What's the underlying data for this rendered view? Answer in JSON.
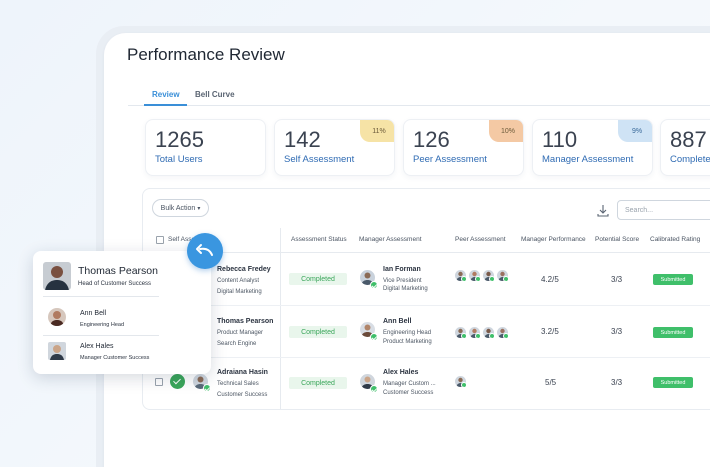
{
  "page": {
    "title": "Performance Review"
  },
  "tabs": [
    {
      "label": "Review",
      "active": true
    },
    {
      "label": "Bell Curve",
      "active": false
    }
  ],
  "stats": [
    {
      "value": "1265",
      "label": "Total Users",
      "percent": ""
    },
    {
      "value": "142",
      "label": "Self Assessment",
      "percent": "11%",
      "color": "#f6e3a6"
    },
    {
      "value": "126",
      "label": "Peer Assessment",
      "percent": "10%",
      "color": "#f4c9a4"
    },
    {
      "value": "110",
      "label": "Manager Assessment",
      "percent": "9%",
      "color": "#cfe3f5"
    },
    {
      "value": "887",
      "label": "Completed",
      "percent": ""
    }
  ],
  "toolbar": {
    "bulk_action": "Bulk Action",
    "search_placeholder": "Search..."
  },
  "table": {
    "headers": {
      "self": "Self Assessment",
      "status": "Assessment Status",
      "manager": "Manager Assessment",
      "peer": "Peer Assessment",
      "performance": "Manager Performance",
      "potential": "Potential Score",
      "rating": "Calibrated Rating"
    },
    "rows": [
      {
        "name": "Rebecca Fredey",
        "role": "Content Analyst",
        "dept": "Digital Marketing",
        "status": "Completed",
        "manager_name": "Ian Forman",
        "manager_role": "Vice President",
        "manager_dept": "Digital Marketing",
        "performance": "4.2/5",
        "potential": "3/3",
        "rating": "Submitted"
      },
      {
        "name": "Thomas Pearson",
        "role": "Product Manager",
        "dept": "Search Engine",
        "status": "Completed",
        "manager_name": "Ann Bell",
        "manager_role": "Engineering Head",
        "manager_dept": "Product Marketing",
        "performance": "3.2/5",
        "potential": "3/3",
        "rating": "Submitted"
      },
      {
        "name": "Adraiana Hasin",
        "role": "Technical Sales",
        "dept": "Customer Success",
        "status": "Completed",
        "manager_name": "Alex Hales",
        "manager_role": "Manager Custom ...",
        "manager_dept": "Customer Success",
        "performance": "5/5",
        "potential": "3/3",
        "rating": "Submitted"
      }
    ]
  },
  "popup": {
    "main_name": "Thomas Pearson",
    "main_title": "Head of Customer Success",
    "people": [
      {
        "name": "Ann Bell",
        "title": "Engineering Head"
      },
      {
        "name": "Alex Hales",
        "title": "Manager Customer Success"
      }
    ]
  },
  "colors": {
    "accent": "#3a8fd8",
    "success": "#3fbf6a",
    "link": "#2f6bb3"
  }
}
